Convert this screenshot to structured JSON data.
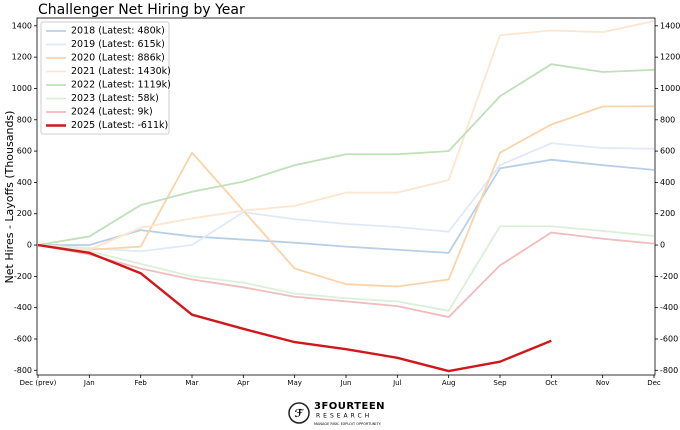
{
  "chart_data": {
    "type": "line",
    "title": "Challenger Net Hiring by Year",
    "y_label": "Net Hires - Layoffs (Thousands)",
    "categories": [
      "Dec (prev)",
      "Jan",
      "Feb",
      "Mar",
      "Apr",
      "May",
      "Jun",
      "Jul",
      "Aug",
      "Sep",
      "Oct",
      "Nov",
      "Dec"
    ],
    "ylim": [
      -830,
      1450
    ],
    "yticks": [
      -800,
      -600,
      -400,
      -200,
      0,
      200,
      400,
      600,
      800,
      1000,
      1200,
      1400
    ],
    "legend": "upper left",
    "series": [
      {
        "name": "2018 (Latest: 480k)",
        "color": "#b9cfe8",
        "linewidth": 1.8,
        "values": [
          0,
          0,
          95,
          55,
          35,
          15,
          -10,
          -30,
          -50,
          490,
          545,
          510,
          480
        ]
      },
      {
        "name": "2019 (Latest: 615k)",
        "color": "#e0eaf6",
        "linewidth": 1.8,
        "values": [
          0,
          -20,
          -40,
          0,
          210,
          165,
          135,
          115,
          85,
          510,
          650,
          620,
          615
        ]
      },
      {
        "name": "2020 (Latest: 886k)",
        "color": "#fbd3a8",
        "linewidth": 1.8,
        "values": [
          0,
          -30,
          -10,
          590,
          220,
          -150,
          -250,
          -265,
          -220,
          590,
          770,
          885,
          886
        ]
      },
      {
        "name": "2021 (Latest: 1430k)",
        "color": "#fde6cf",
        "linewidth": 1.8,
        "values": [
          0,
          -30,
          110,
          170,
          220,
          250,
          335,
          335,
          415,
          1340,
          1370,
          1360,
          1430
        ]
      },
      {
        "name": "2022 (Latest: 1119k)",
        "color": "#bfe0b9",
        "linewidth": 1.8,
        "values": [
          0,
          55,
          255,
          340,
          405,
          510,
          580,
          580,
          600,
          950,
          1155,
          1105,
          1119
        ]
      },
      {
        "name": "2023 (Latest: 58k)",
        "color": "#daf0d8",
        "linewidth": 1.8,
        "values": [
          0,
          -40,
          -120,
          -200,
          -240,
          -310,
          -340,
          -360,
          -420,
          120,
          120,
          90,
          58
        ]
      },
      {
        "name": "2024 (Latest: 9k)",
        "color": "#f1bcbc",
        "linewidth": 1.8,
        "values": [
          0,
          -60,
          -150,
          -220,
          -270,
          -330,
          -360,
          -390,
          -460,
          -130,
          80,
          40,
          9
        ]
      },
      {
        "name": "2025 (Latest: -611k)",
        "color": "#d0181c",
        "linewidth": 2.4,
        "values": [
          0,
          -50,
          -180,
          -445,
          -535,
          -620,
          -665,
          -720,
          -805,
          -745,
          -611,
          null,
          null
        ]
      }
    ]
  },
  "logo": {
    "name": "3FOURTEEN",
    "sub": "RESEARCH",
    "tagline": "MANAGE RISK. EXPLOIT OPPORTUNITY."
  }
}
